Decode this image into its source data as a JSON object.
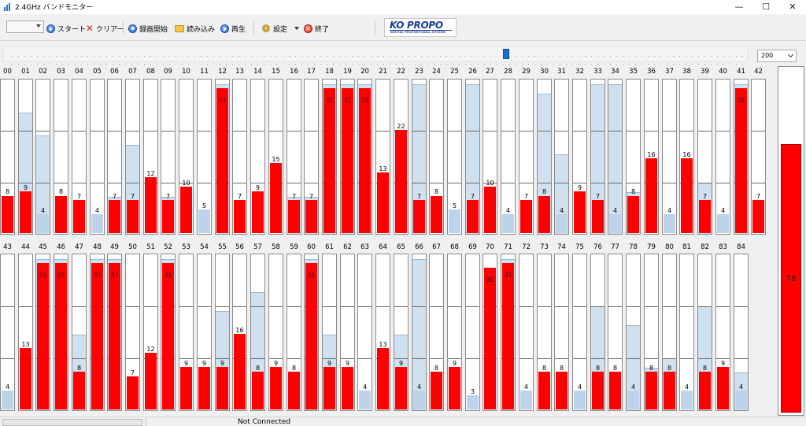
{
  "window": {
    "title": "2.4GHz バンドモニター",
    "controls": [
      "—",
      "☐",
      "✕"
    ]
  },
  "toolbar": {
    "start_label": "スタート",
    "clear_label": "クリアー",
    "record_label": "録画開始",
    "load_label": "読み込み",
    "play_label": "再生",
    "settings_label": "設定",
    "exit_label": "終了",
    "logo_text": "KO PROPO",
    "logo_sub": "DIGITAL PROPORTIONAL SYSTEM"
  },
  "timeline": {
    "position_fraction": 0.675
  },
  "scale": {
    "selected": "200"
  },
  "max_level": 33,
  "total": {
    "value": "78",
    "level": 78,
    "max": 100
  },
  "status": {
    "text": "Not Connected"
  },
  "channels_row1": [
    {
      "id": "00",
      "value": 8,
      "peak": 8
    },
    {
      "id": "01",
      "value": 9,
      "peak": 26
    },
    {
      "id": "02",
      "value": 4,
      "peak": 21
    },
    {
      "id": "03",
      "value": 8,
      "peak": 8
    },
    {
      "id": "04",
      "value": 7,
      "peak": 7
    },
    {
      "id": "05",
      "value": 4,
      "peak": 4
    },
    {
      "id": "06",
      "value": 7,
      "peak": 8
    },
    {
      "id": "07",
      "value": 7,
      "peak": 19
    },
    {
      "id": "08",
      "value": 12,
      "peak": 12
    },
    {
      "id": "09",
      "value": 7,
      "peak": 8
    },
    {
      "id": "10",
      "value": 10,
      "peak": 10
    },
    {
      "id": "11",
      "value": 5,
      "peak": 5
    },
    {
      "id": "12",
      "value": 31,
      "peak": 32
    },
    {
      "id": "13",
      "value": 7,
      "peak": 7
    },
    {
      "id": "14",
      "value": 9,
      "peak": 9
    },
    {
      "id": "15",
      "value": 15,
      "peak": 15
    },
    {
      "id": "16",
      "value": 7,
      "peak": 8
    },
    {
      "id": "17",
      "value": 7,
      "peak": 8
    },
    {
      "id": "18",
      "value": 31,
      "peak": 32
    },
    {
      "id": "19",
      "value": 31,
      "peak": 32
    },
    {
      "id": "20",
      "value": 31,
      "peak": 32
    },
    {
      "id": "21",
      "value": 13,
      "peak": 13
    },
    {
      "id": "22",
      "value": 22,
      "peak": 22
    },
    {
      "id": "23",
      "value": 7,
      "peak": 32
    },
    {
      "id": "24",
      "value": 8,
      "peak": 8
    },
    {
      "id": "25",
      "value": 5,
      "peak": 5
    },
    {
      "id": "26",
      "value": 7,
      "peak": 32
    },
    {
      "id": "27",
      "value": 10,
      "peak": 10
    },
    {
      "id": "28",
      "value": 4,
      "peak": 4
    },
    {
      "id": "29",
      "value": 7,
      "peak": 7
    },
    {
      "id": "30",
      "value": 8,
      "peak": 30
    },
    {
      "id": "31",
      "value": 4,
      "peak": 17
    },
    {
      "id": "32",
      "value": 9,
      "peak": 9
    },
    {
      "id": "33",
      "value": 7,
      "peak": 32
    },
    {
      "id": "34",
      "value": 4,
      "peak": 32
    },
    {
      "id": "35",
      "value": 8,
      "peak": 9
    },
    {
      "id": "36",
      "value": 16,
      "peak": 16
    },
    {
      "id": "37",
      "value": 4,
      "peak": 4
    },
    {
      "id": "38",
      "value": 16,
      "peak": 16
    },
    {
      "id": "39",
      "value": 7,
      "peak": 11
    },
    {
      "id": "40",
      "value": 4,
      "peak": 4
    },
    {
      "id": "41",
      "value": 31,
      "peak": 32
    },
    {
      "id": "42",
      "value": 7,
      "peak": 7
    }
  ],
  "channels_row2": [
    {
      "id": "43",
      "value": 4,
      "peak": 4
    },
    {
      "id": "44",
      "value": 13,
      "peak": 13
    },
    {
      "id": "45",
      "value": 31,
      "peak": 32
    },
    {
      "id": "46",
      "value": 31,
      "peak": 32
    },
    {
      "id": "47",
      "value": 8,
      "peak": 16
    },
    {
      "id": "48",
      "value": 31,
      "peak": 32
    },
    {
      "id": "49",
      "value": 31,
      "peak": 32
    },
    {
      "id": "50",
      "value": 7,
      "peak": 7
    },
    {
      "id": "51",
      "value": 12,
      "peak": 12
    },
    {
      "id": "52",
      "value": 31,
      "peak": 32
    },
    {
      "id": "53",
      "value": 9,
      "peak": 9
    },
    {
      "id": "54",
      "value": 9,
      "peak": 9
    },
    {
      "id": "55",
      "value": 9,
      "peak": 21
    },
    {
      "id": "56",
      "value": 16,
      "peak": 16
    },
    {
      "id": "57",
      "value": 8,
      "peak": 25
    },
    {
      "id": "58",
      "value": 9,
      "peak": 9
    },
    {
      "id": "59",
      "value": 8,
      "peak": 8
    },
    {
      "id": "60",
      "value": 31,
      "peak": 32
    },
    {
      "id": "61",
      "value": 9,
      "peak": 16
    },
    {
      "id": "62",
      "value": 9,
      "peak": 9
    },
    {
      "id": "63",
      "value": 4,
      "peak": 4
    },
    {
      "id": "64",
      "value": 13,
      "peak": 13
    },
    {
      "id": "65",
      "value": 9,
      "peak": 16
    },
    {
      "id": "66",
      "value": 4,
      "peak": 32
    },
    {
      "id": "67",
      "value": 8,
      "peak": 8
    },
    {
      "id": "68",
      "value": 9,
      "peak": 9
    },
    {
      "id": "69",
      "value": 3,
      "peak": 3
    },
    {
      "id": "70",
      "value": 30,
      "peak": 30
    },
    {
      "id": "71",
      "value": 31,
      "peak": 32
    },
    {
      "id": "72",
      "value": 4,
      "peak": 4
    },
    {
      "id": "73",
      "value": 8,
      "peak": 8
    },
    {
      "id": "74",
      "value": 8,
      "peak": 8
    },
    {
      "id": "75",
      "value": 4,
      "peak": 4
    },
    {
      "id": "76",
      "value": 8,
      "peak": 22
    },
    {
      "id": "77",
      "value": 8,
      "peak": 8
    },
    {
      "id": "78",
      "value": 4,
      "peak": 18
    },
    {
      "id": "79",
      "value": 8,
      "peak": 9
    },
    {
      "id": "80",
      "value": 8,
      "peak": 11
    },
    {
      "id": "81",
      "value": 4,
      "peak": 4
    },
    {
      "id": "82",
      "value": 8,
      "peak": 22
    },
    {
      "id": "83",
      "value": 9,
      "peak": 9
    },
    {
      "id": "84",
      "value": 4,
      "peak": 8
    }
  ],
  "colors": {
    "signal": "#ff0000",
    "peak": "#cfe0ef",
    "low_signal": "#bcd3ea",
    "frame": "#8a8a8a"
  }
}
